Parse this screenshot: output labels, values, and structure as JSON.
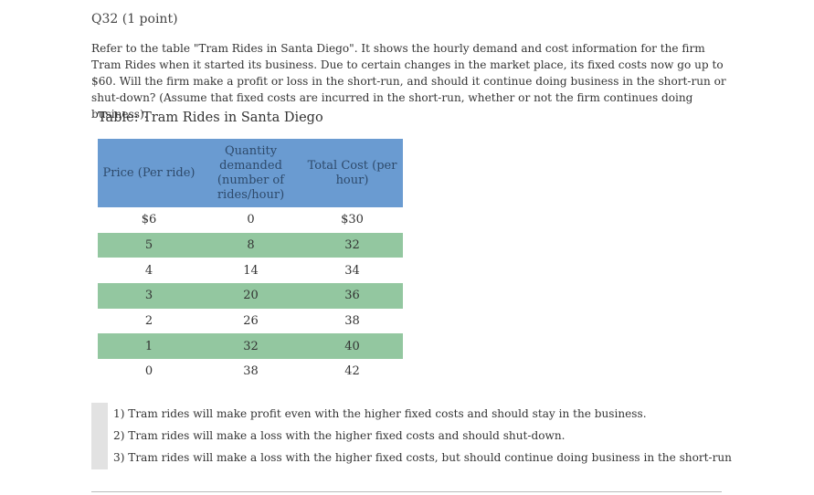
{
  "question": {
    "title": "Q32 (1 point)",
    "text": "Refer to the table \"Tram Rides in Santa Diego\". It shows the hourly demand and cost information for the firm Tram Rides when it started its business. Due to certain changes in the market place, its fixed costs now go up to $60. Will the firm make a profit or loss in the short-run, and should it continue doing business in the short-run or shut-down? (Assume that fixed costs are incurred in the short-run, whether or not the firm continues doing business)."
  },
  "table": {
    "caption": "Table: Tram Rides in Santa Diego",
    "headers": [
      "Price (Per ride)",
      "Quantity demanded (number of rides/hour)",
      "Total Cost (per hour)"
    ],
    "rows": [
      [
        "$6",
        "0",
        "$30"
      ],
      [
        "5",
        "8",
        "32"
      ],
      [
        "4",
        "14",
        "34"
      ],
      [
        "3",
        "20",
        "36"
      ],
      [
        "2",
        "26",
        "38"
      ],
      [
        "1",
        "32",
        "40"
      ],
      [
        "0",
        "38",
        "42"
      ]
    ],
    "colors": {
      "header": "#6a9bd1",
      "shaded_row": "#93c7a0"
    }
  },
  "options": [
    "1) Tram rides will make profit even with the higher fixed costs and should stay in the business.",
    "2) Tram rides will make a loss with the higher fixed costs and should shut-down.",
    "3) Tram rides will make a loss with the higher fixed costs, but should continue doing business in the short-run"
  ]
}
